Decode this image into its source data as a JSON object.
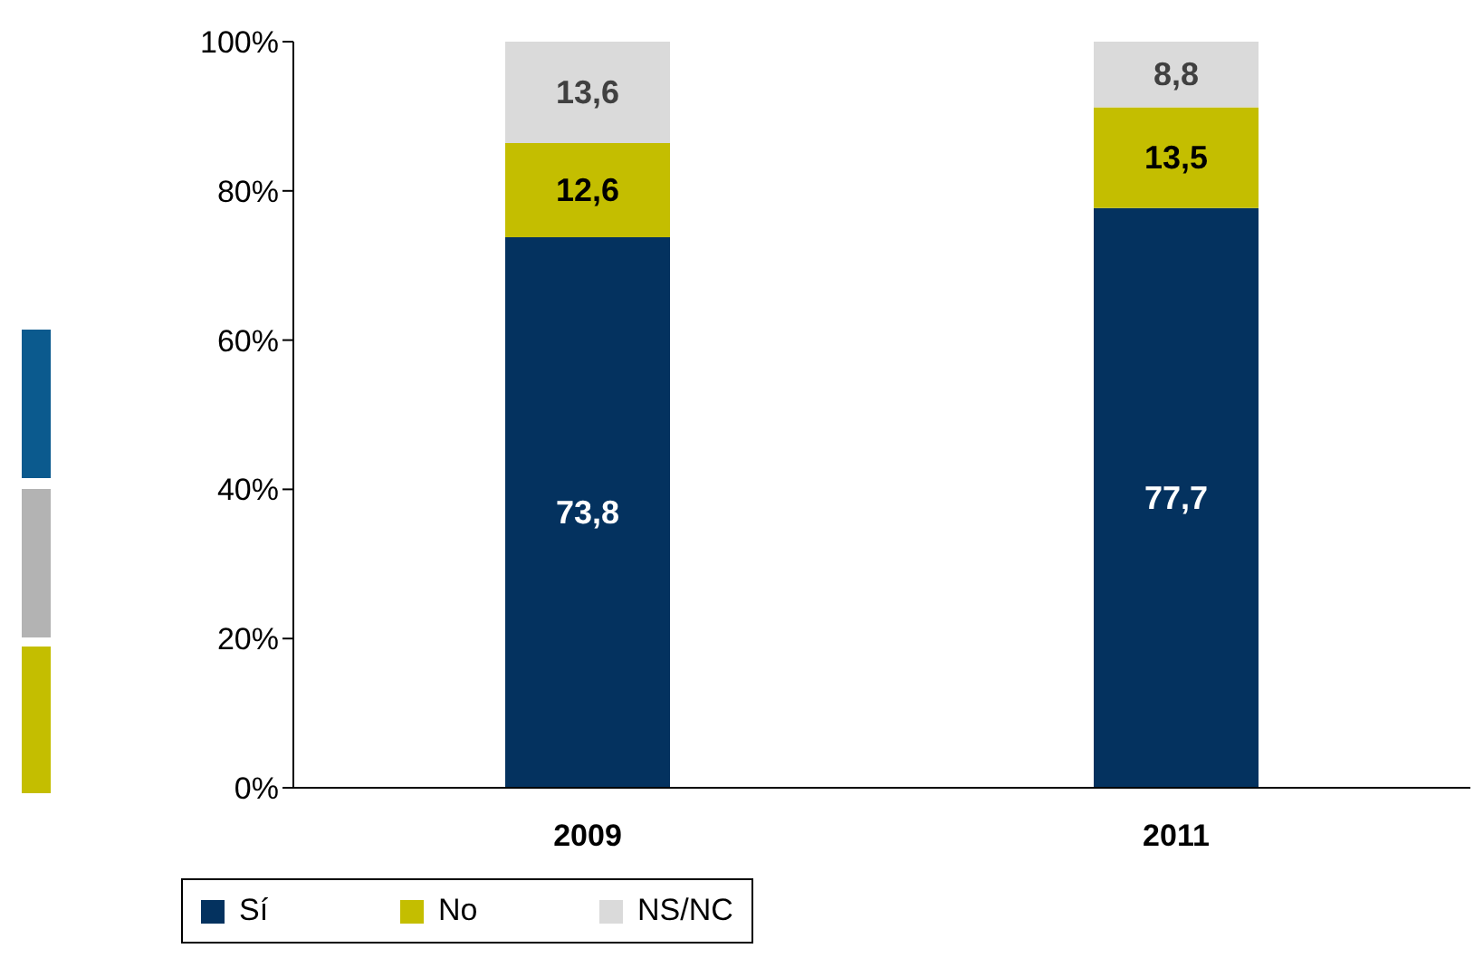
{
  "chart_data": {
    "type": "bar",
    "stacked": true,
    "categories": [
      "2009",
      "2011"
    ],
    "series": [
      {
        "name": "Sí",
        "color": "#04325f",
        "values": [
          73.8,
          77.7
        ],
        "value_labels": [
          "73,8",
          "77,7"
        ]
      },
      {
        "name": "No",
        "color": "#c4be00",
        "values": [
          12.6,
          13.5
        ],
        "value_labels": [
          "12,6",
          "13,5"
        ]
      },
      {
        "name": "NS/NC",
        "color": "#dadada",
        "values": [
          13.6,
          8.8
        ],
        "value_labels": [
          "13,6",
          "8,8"
        ]
      }
    ],
    "ylim": [
      0,
      100
    ],
    "yticks": [
      {
        "value": 0,
        "label": "0%"
      },
      {
        "value": 20,
        "label": "20%"
      },
      {
        "value": 40,
        "label": "40%"
      },
      {
        "value": 60,
        "label": "60%"
      },
      {
        "value": 80,
        "label": "80%"
      },
      {
        "value": 100,
        "label": "100%"
      }
    ],
    "grid": false,
    "legend": "bottom"
  }
}
